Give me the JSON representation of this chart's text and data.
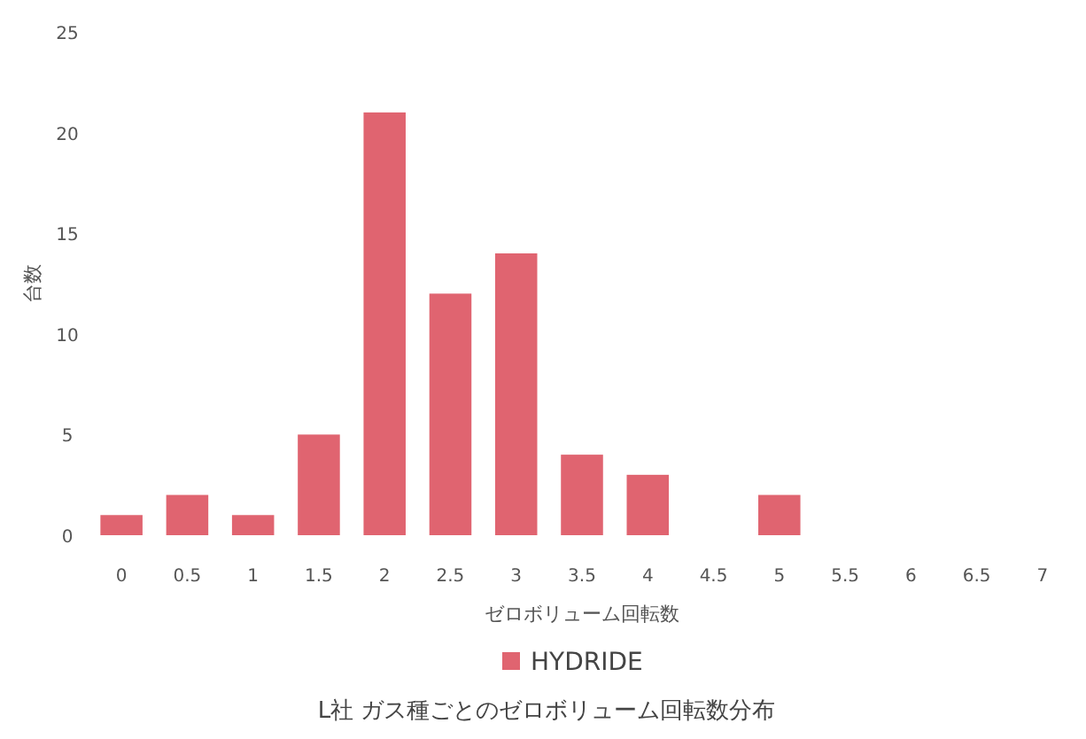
{
  "chart_data": {
    "type": "bar",
    "title": "L社 ガス種ごとのゼロボリューム回転数分布",
    "xlabel": "ゼロボリューム回転数",
    "ylabel": "台数",
    "categories": [
      "0",
      "0.5",
      "1",
      "1.5",
      "2",
      "2.5",
      "3",
      "3.5",
      "4",
      "4.5",
      "5",
      "5.5",
      "6",
      "6.5",
      "7"
    ],
    "series": [
      {
        "name": "HYDRIDE",
        "color": "#e06470",
        "values": [
          1,
          2,
          1,
          5,
          21,
          12,
          14,
          4,
          3,
          0,
          2,
          0,
          0,
          0,
          0
        ]
      }
    ],
    "ylim": [
      0,
      25
    ],
    "yticks": [
      0,
      5,
      10,
      15,
      20,
      25
    ],
    "grid": false,
    "legend": "bottom"
  }
}
